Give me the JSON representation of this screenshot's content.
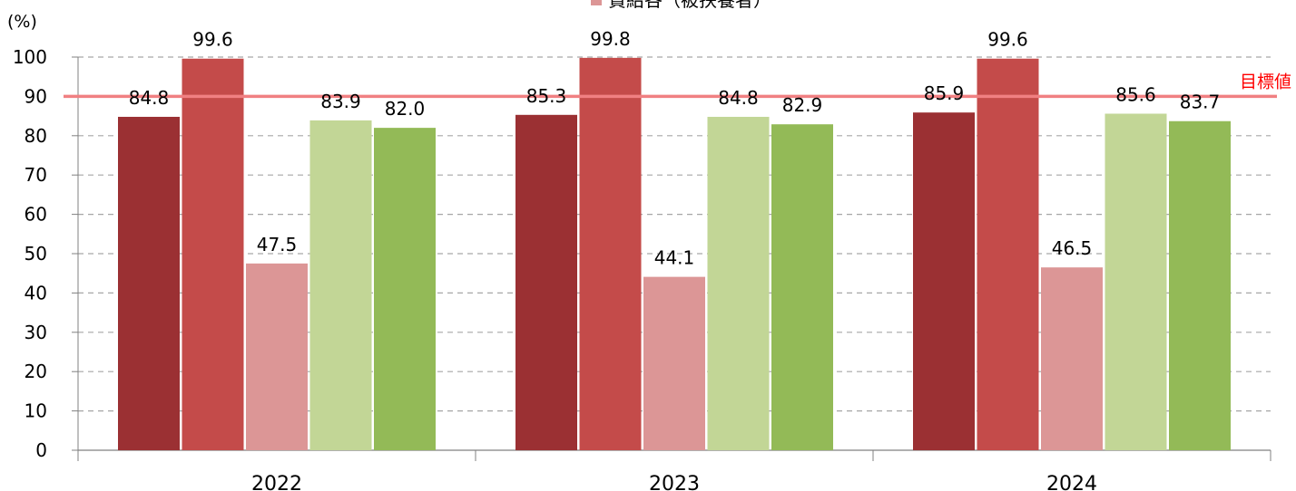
{
  "chart_data": {
    "type": "bar",
    "unit_label": "(%)",
    "categories": [
      "2022",
      "2023",
      "2024"
    ],
    "ylim": [
      0,
      100
    ],
    "yticks": [
      0,
      10,
      20,
      30,
      40,
      50,
      60,
      70,
      80,
      90,
      100
    ],
    "grid": true,
    "legend": {
      "placement": "top",
      "visible_entry": "賞給各（被扶養者）"
    },
    "series": [
      {
        "values": [
          84.8,
          85.3,
          85.9
        ],
        "color": "#9b3033"
      },
      {
        "values": [
          99.6,
          99.8,
          99.6
        ],
        "color": "#c44b4a"
      },
      {
        "name": "賞給各（被扶養者）",
        "values": [
          47.5,
          44.1,
          46.5
        ],
        "color": "#dc9696"
      },
      {
        "values": [
          83.9,
          84.8,
          85.6
        ],
        "color": "#c2d696"
      },
      {
        "values": [
          82.0,
          82.9,
          83.7
        ],
        "color": "#93ba57"
      }
    ],
    "target": {
      "label": "目標値",
      "value": 90,
      "color": "#f08082",
      "label_color": "#ff0000"
    }
  }
}
